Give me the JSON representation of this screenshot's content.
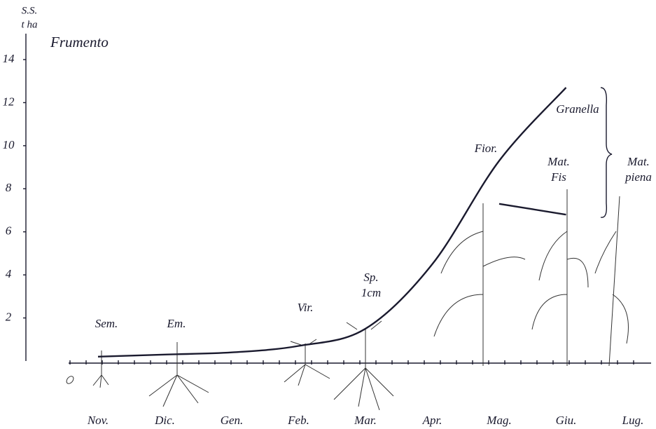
{
  "chart_data": {
    "type": "line",
    "title": "Frumento",
    "y_label": [
      "S.S.",
      "t ha"
    ],
    "categories": [
      "Nov.",
      "Dic.",
      "Gen.",
      "Feb.",
      "Mar.",
      "Apr.",
      "Mag.",
      "Giu.",
      "Lug."
    ],
    "series": [
      {
        "color": "#1a1a2e",
        "values": [
          0.2,
          0.3,
          0.4,
          0.7,
          1.5,
          4.5,
          9.3,
          12.7,
          null
        ]
      },
      {
        "color": "#1a1a2e",
        "values": [
          null,
          null,
          null,
          null,
          null,
          null,
          7.3,
          6.8,
          null
        ]
      }
    ],
    "ylim": [
      0,
      14
    ],
    "yticks": [
      2,
      4,
      6,
      8,
      10,
      12,
      14
    ],
    "grid": false,
    "grain_label": "Granella",
    "stages": [
      [
        "Sem."
      ],
      [
        "Em."
      ],
      [
        "Vir."
      ],
      [
        "Sp.",
        "1cm"
      ],
      [
        "Fior."
      ],
      [
        "Mat.",
        "Fis"
      ],
      [
        "Mat.",
        "piena"
      ]
    ]
  }
}
